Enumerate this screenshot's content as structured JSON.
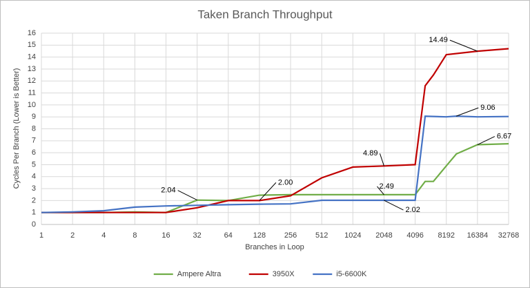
{
  "chart_data": {
    "type": "line",
    "title": "Taken Branch Throughput",
    "x_label": "Branches in Loop",
    "y_label": "Cycles Per Branch (Lower is Better)",
    "x_log_base": 2,
    "xlim": [
      1,
      32768
    ],
    "xticks": [
      1,
      2,
      4,
      8,
      16,
      32,
      64,
      128,
      256,
      512,
      1024,
      2048,
      4096,
      8192,
      16384,
      32768
    ],
    "ylim": [
      0,
      16
    ],
    "yticks": [
      0,
      1,
      2,
      3,
      4,
      5,
      6,
      7,
      8,
      9,
      10,
      11,
      12,
      13,
      14,
      15,
      16
    ],
    "grid": true,
    "legend": "bottom",
    "series": [
      {
        "name": "Ampere Altra",
        "color": "#70ad47",
        "x": [
          1,
          2,
          4,
          8,
          16,
          32,
          64,
          128,
          256,
          512,
          1024,
          2048,
          4096,
          5120,
          6144,
          8192,
          10240,
          16384,
          32768
        ],
        "values": [
          1,
          1,
          1,
          1.05,
          1,
          2.04,
          2,
          2.45,
          2.49,
          2.49,
          2.49,
          2.49,
          2.49,
          3.6,
          3.6,
          4.9,
          5.9,
          6.67,
          6.75
        ],
        "value_labels": [
          null,
          null,
          null,
          null,
          null,
          "2.04",
          null,
          null,
          null,
          null,
          null,
          "2.49",
          null,
          null,
          null,
          null,
          null,
          "6.67",
          null
        ]
      },
      {
        "name": "3950X",
        "color": "#c00000",
        "x": [
          1,
          2,
          4,
          8,
          16,
          32,
          64,
          128,
          256,
          512,
          1024,
          2048,
          4096,
          5120,
          6144,
          8192,
          16384,
          32768
        ],
        "values": [
          1,
          1,
          1,
          1,
          1,
          1.4,
          2,
          2,
          2.4,
          3.9,
          4.8,
          4.89,
          5,
          11.6,
          12.5,
          14.2,
          14.49,
          14.7
        ],
        "value_labels": [
          null,
          null,
          null,
          null,
          null,
          null,
          null,
          "2.00",
          null,
          null,
          null,
          "4.89",
          null,
          null,
          null,
          null,
          "14.49",
          null
        ]
      },
      {
        "name": "i5-6600K",
        "color": "#4472c4",
        "x": [
          1,
          2,
          4,
          8,
          16,
          32,
          64,
          128,
          256,
          512,
          1024,
          2048,
          4096,
          5120,
          8192,
          10240,
          16384,
          32768
        ],
        "values": [
          1,
          1.05,
          1.15,
          1.45,
          1.55,
          1.6,
          1.65,
          1.7,
          1.72,
          2.02,
          2.02,
          2.02,
          2.02,
          9.05,
          9,
          9.06,
          9,
          9.03
        ],
        "value_labels": [
          null,
          null,
          null,
          null,
          null,
          null,
          null,
          null,
          null,
          null,
          null,
          "2.02",
          null,
          null,
          null,
          "9.06",
          null,
          null
        ]
      }
    ]
  }
}
